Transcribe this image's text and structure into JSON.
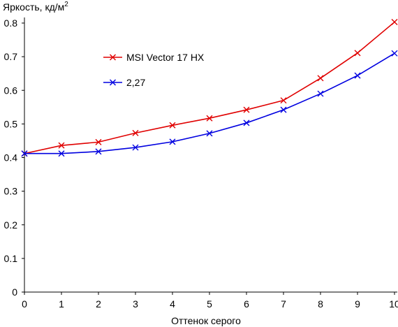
{
  "chart_data": {
    "type": "line",
    "title": "",
    "ylabel": "Яркость, кд/м",
    "ylabel_sup": "2",
    "xlabel": "Оттенок серого",
    "x": [
      0,
      1,
      2,
      3,
      4,
      5,
      6,
      7,
      8,
      9,
      10
    ],
    "xlim": [
      0,
      10
    ],
    "ylim": [
      0,
      0.8
    ],
    "yticks": [
      "0",
      "0.1",
      "0.2",
      "0.3",
      "0.4",
      "0.5",
      "0.6",
      "0.7",
      "0.8"
    ],
    "xticks": [
      "0",
      "1",
      "2",
      "3",
      "4",
      "5",
      "6",
      "7",
      "8",
      "9",
      "10"
    ],
    "grid": false,
    "legend_position": "upper-left",
    "series": [
      {
        "name": "MSI Vector 17 HX",
        "color": "#e00000",
        "marker": "x",
        "values": [
          0.412,
          0.436,
          0.446,
          0.473,
          0.496,
          0.517,
          0.542,
          0.57,
          0.636,
          0.711,
          0.803
        ]
      },
      {
        "name": "2,27",
        "color": "#0000e0",
        "marker": "x",
        "values": [
          0.412,
          0.412,
          0.418,
          0.43,
          0.447,
          0.472,
          0.503,
          0.542,
          0.59,
          0.644,
          0.71
        ]
      }
    ]
  }
}
